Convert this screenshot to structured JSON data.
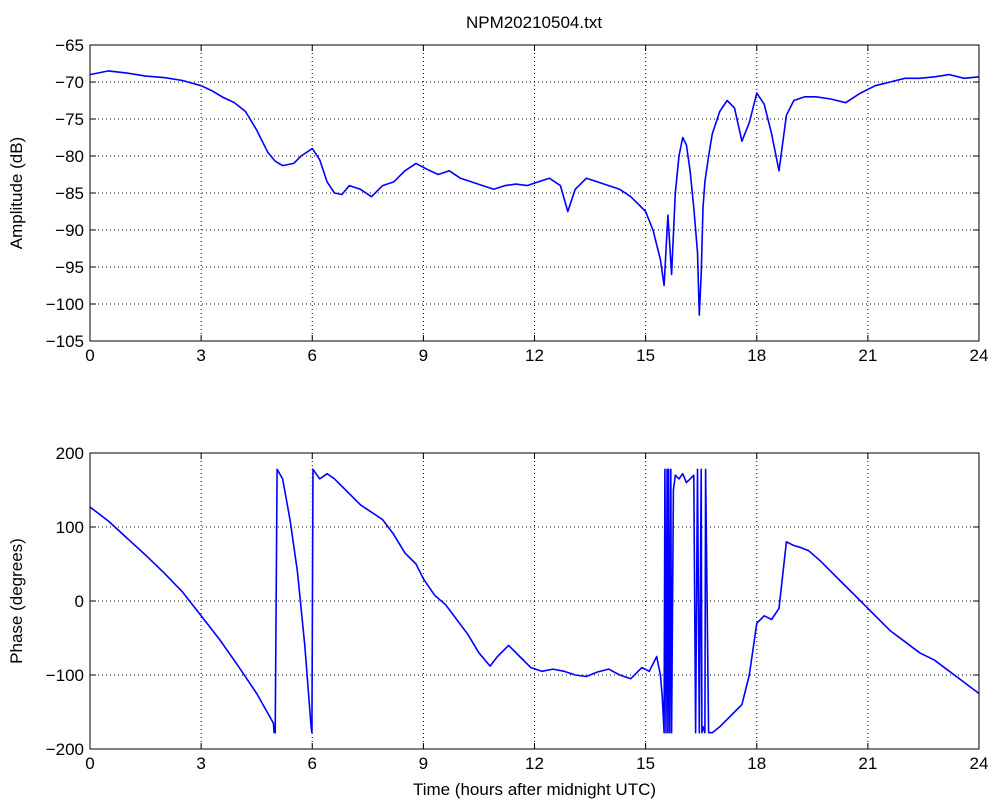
{
  "figure": {
    "title": "NPM20210504.txt",
    "line_color": "#0000ff"
  },
  "chart_data": [
    {
      "type": "line",
      "title": "NPM20210504.txt",
      "xlabel": "",
      "ylabel": "Amplitude (dB)",
      "xlim": [
        0,
        24
      ],
      "ylim": [
        -105,
        -65
      ],
      "xticks": [
        0,
        3,
        6,
        9,
        12,
        15,
        18,
        21,
        24
      ],
      "xtick_labels": [
        "0",
        "3",
        "6",
        "9",
        "12",
        "15",
        "18",
        "21",
        "24"
      ],
      "yticks": [
        -65,
        -70,
        -75,
        -80,
        -85,
        -90,
        -95,
        -100,
        -105
      ],
      "ytick_labels": [
        "−65",
        "−70",
        "−75",
        "−80",
        "−85",
        "−90",
        "−95",
        "−100",
        "−105"
      ],
      "grid": true,
      "series": [
        {
          "color": "#0000ff",
          "x": [
            0,
            0.5,
            1,
            1.5,
            2,
            2.5,
            3,
            3.3,
            3.6,
            3.9,
            4.2,
            4.5,
            4.8,
            5.0,
            5.2,
            5.5,
            5.7,
            6.0,
            6.2,
            6.4,
            6.6,
            6.8,
            7.0,
            7.3,
            7.6,
            7.9,
            8.2,
            8.5,
            8.8,
            9.1,
            9.4,
            9.7,
            10.0,
            10.3,
            10.6,
            10.9,
            11.2,
            11.5,
            11.8,
            12.1,
            12.4,
            12.7,
            12.9,
            13.1,
            13.4,
            13.7,
            14.0,
            14.3,
            14.6,
            14.8,
            15.0,
            15.2,
            15.4,
            15.5,
            15.6,
            15.7,
            15.8,
            15.9,
            16.0,
            16.1,
            16.2,
            16.3,
            16.4,
            16.45,
            16.5,
            16.55,
            16.6,
            16.7,
            16.8,
            17.0,
            17.2,
            17.4,
            17.6,
            17.8,
            18.0,
            18.2,
            18.4,
            18.6,
            18.8,
            19.0,
            19.3,
            19.6,
            20.0,
            20.4,
            20.8,
            21.2,
            21.6,
            22.0,
            22.4,
            22.8,
            23.2,
            23.6,
            24.0
          ],
          "y": [
            -69.0,
            -68.5,
            -68.8,
            -69.2,
            -69.4,
            -69.8,
            -70.5,
            -71.2,
            -72.1,
            -72.8,
            -74.0,
            -76.5,
            -79.5,
            -80.7,
            -81.3,
            -81.0,
            -80.0,
            -79.0,
            -80.5,
            -83.5,
            -85.0,
            -85.2,
            -84.0,
            -84.5,
            -85.5,
            -84.0,
            -83.5,
            -82.0,
            -81.0,
            -81.8,
            -82.5,
            -82.0,
            -83.0,
            -83.5,
            -84.0,
            -84.5,
            -84.0,
            -83.8,
            -84.0,
            -83.5,
            -83.0,
            -84.0,
            -87.5,
            -84.5,
            -83.0,
            -83.5,
            -84.0,
            -84.5,
            -85.5,
            -86.5,
            -87.5,
            -90.0,
            -94.0,
            -97.5,
            -88.0,
            -96.0,
            -85.0,
            -80.0,
            -77.5,
            -78.5,
            -82.0,
            -87.0,
            -93.0,
            -101.5,
            -96.0,
            -87.0,
            -83.5,
            -80.0,
            -77.0,
            -74.0,
            -72.5,
            -73.5,
            -78.0,
            -75.5,
            -71.5,
            -73.0,
            -77.0,
            -82.0,
            -74.5,
            -72.5,
            -72.0,
            -72.0,
            -72.3,
            -72.8,
            -71.5,
            -70.5,
            -70.0,
            -69.5,
            -69.5,
            -69.3,
            -69.0,
            -69.5,
            -69.3
          ]
        }
      ]
    },
    {
      "type": "line",
      "title": "",
      "xlabel": "Time (hours after midnight UTC)",
      "ylabel": "Phase (degrees)",
      "xlim": [
        0,
        24
      ],
      "ylim": [
        -200,
        200
      ],
      "xticks": [
        0,
        3,
        6,
        9,
        12,
        15,
        18,
        21,
        24
      ],
      "xtick_labels": [
        "0",
        "3",
        "6",
        "9",
        "12",
        "15",
        "18",
        "21",
        "24"
      ],
      "yticks": [
        200,
        100,
        0,
        -100,
        -200
      ],
      "ytick_labels": [
        "200",
        "100",
        "0",
        "−100",
        "−200"
      ],
      "grid": true,
      "series": [
        {
          "color": "#0000ff",
          "x": [
            0,
            0.5,
            1.0,
            1.5,
            2.0,
            2.5,
            3.0,
            3.5,
            4.0,
            4.5,
            4.95,
            4.97,
            5.0,
            5.05,
            5.2,
            5.4,
            5.6,
            5.8,
            5.97,
            5.99,
            6.02,
            6.2,
            6.4,
            6.6,
            6.8,
            7.0,
            7.3,
            7.6,
            7.9,
            8.2,
            8.5,
            8.8,
            9.0,
            9.3,
            9.6,
            9.9,
            10.2,
            10.5,
            10.8,
            11.0,
            11.3,
            11.6,
            11.9,
            12.2,
            12.5,
            12.8,
            13.1,
            13.4,
            13.7,
            14.0,
            14.3,
            14.6,
            14.9,
            15.1,
            15.3,
            15.4,
            15.45,
            15.5,
            15.52,
            15.55,
            15.58,
            15.6,
            15.62,
            15.65,
            15.68,
            15.7,
            15.75,
            15.8,
            15.9,
            16.0,
            16.1,
            16.2,
            16.3,
            16.35,
            16.4,
            16.45,
            16.5,
            16.52,
            16.55,
            16.6,
            16.62,
            16.7,
            16.8,
            17.0,
            17.2,
            17.4,
            17.6,
            17.8,
            18.0,
            18.2,
            18.4,
            18.6,
            18.8,
            19.0,
            19.2,
            19.4,
            19.7,
            20.0,
            20.3,
            20.6,
            20.9,
            21.2,
            21.6,
            22.0,
            22.4,
            22.8,
            23.2,
            23.6,
            24.0
          ],
          "y": [
            127,
            108,
            85,
            62,
            38,
            12,
            -20,
            -52,
            -88,
            -125,
            -165,
            -178,
            -178,
            178,
            165,
            110,
            40,
            -60,
            -170,
            -178,
            178,
            165,
            172,
            165,
            155,
            145,
            130,
            120,
            110,
            90,
            65,
            50,
            30,
            8,
            -5,
            -25,
            -45,
            -70,
            -88,
            -75,
            -60,
            -75,
            -90,
            -95,
            -92,
            -95,
            -100,
            -102,
            -96,
            -92,
            -100,
            -105,
            -90,
            -95,
            -75,
            -100,
            -130,
            -178,
            178,
            -178,
            178,
            -178,
            178,
            -178,
            178,
            -178,
            150,
            170,
            165,
            172,
            160,
            165,
            170,
            -178,
            178,
            -178,
            178,
            -178,
            -170,
            -178,
            178,
            -178,
            -178,
            -170,
            -160,
            -150,
            -140,
            -100,
            -30,
            -20,
            -25,
            -10,
            80,
            75,
            72,
            68,
            55,
            40,
            25,
            10,
            -5,
            -20,
            -40,
            -55,
            -70,
            -80,
            -95,
            -110,
            -125
          ]
        }
      ]
    }
  ]
}
